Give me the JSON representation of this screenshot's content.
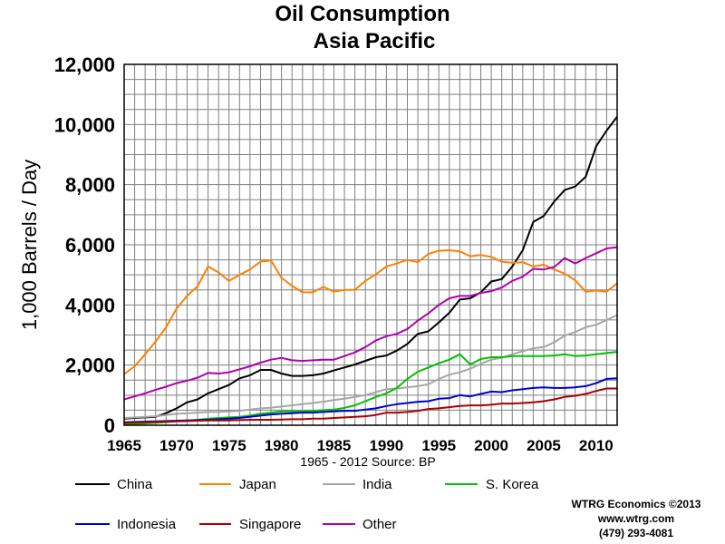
{
  "chart_data": {
    "type": "line",
    "title": "Oil Consumption",
    "subtitle": "Asia Pacific",
    "xlabel": "1965 - 2012 Source: BP",
    "ylabel": "1,000 Barrels / Day",
    "xlim": [
      1965,
      2012
    ],
    "ylim": [
      0,
      12000
    ],
    "grid": true,
    "legend_position": "bottom",
    "x_ticks": [
      "1965",
      "1970",
      "1975",
      "1980",
      "1985",
      "1990",
      "1995",
      "2000",
      "2005",
      "2010"
    ],
    "y_ticks": [
      "0",
      "2,000",
      "4,000",
      "6,000",
      "8,000",
      "10,000",
      "12,000"
    ],
    "x": [
      1965,
      1966,
      1967,
      1968,
      1969,
      1970,
      1971,
      1972,
      1973,
      1974,
      1975,
      1976,
      1977,
      1978,
      1979,
      1980,
      1981,
      1982,
      1983,
      1984,
      1985,
      1986,
      1987,
      1988,
      1989,
      1990,
      1991,
      1992,
      1993,
      1994,
      1995,
      1996,
      1997,
      1998,
      1999,
      2000,
      2001,
      2002,
      2003,
      2004,
      2005,
      2006,
      2007,
      2008,
      2009,
      2010,
      2011,
      2012
    ],
    "series": [
      {
        "name": "China",
        "color": "#000000",
        "values": [
          220,
          240,
          260,
          280,
          400,
          560,
          760,
          860,
          1060,
          1200,
          1340,
          1560,
          1660,
          1840,
          1840,
          1720,
          1640,
          1640,
          1660,
          1720,
          1820,
          1920,
          2020,
          2140,
          2260,
          2320,
          2480,
          2700,
          3040,
          3120,
          3420,
          3740,
          4180,
          4220,
          4420,
          4780,
          4860,
          5280,
          5820,
          6760,
          6960,
          7440,
          7820,
          7940,
          8260,
          9280,
          9800,
          10260
        ]
      },
      {
        "name": "Japan",
        "color": "#ff8000",
        "values": [
          1700,
          1960,
          2360,
          2780,
          3260,
          3880,
          4300,
          4620,
          5280,
          5080,
          4800,
          5000,
          5180,
          5440,
          5480,
          4900,
          4640,
          4420,
          4420,
          4600,
          4440,
          4500,
          4500,
          4800,
          5020,
          5280,
          5380,
          5500,
          5420,
          5700,
          5800,
          5820,
          5780,
          5620,
          5660,
          5600,
          5440,
          5400,
          5420,
          5280,
          5340,
          5180,
          5040,
          4820,
          4440,
          4480,
          4440,
          4720
        ]
      },
      {
        "name": "India",
        "color": "#a6a6a6",
        "values": [
          240,
          260,
          280,
          300,
          340,
          380,
          400,
          420,
          440,
          440,
          460,
          480,
          520,
          560,
          580,
          620,
          660,
          700,
          740,
          780,
          840,
          880,
          940,
          1000,
          1100,
          1200,
          1220,
          1260,
          1300,
          1360,
          1540,
          1680,
          1760,
          1880,
          2040,
          2180,
          2240,
          2360,
          2460,
          2560,
          2600,
          2760,
          2980,
          3100,
          3260,
          3340,
          3500,
          3660
        ]
      },
      {
        "name": "S. Korea",
        "color": "#00c000",
        "values": [
          30,
          40,
          60,
          80,
          100,
          140,
          160,
          180,
          220,
          240,
          260,
          280,
          320,
          380,
          420,
          460,
          460,
          460,
          480,
          500,
          520,
          580,
          660,
          800,
          940,
          1060,
          1240,
          1540,
          1780,
          1920,
          2060,
          2180,
          2360,
          2020,
          2200,
          2260,
          2260,
          2300,
          2300,
          2300,
          2300,
          2320,
          2360,
          2300,
          2320,
          2360,
          2400,
          2440
        ]
      },
      {
        "name": "Indonesia",
        "color": "#0000cc",
        "values": [
          100,
          110,
          120,
          130,
          140,
          150,
          160,
          170,
          180,
          200,
          220,
          240,
          280,
          320,
          360,
          380,
          400,
          420,
          420,
          440,
          460,
          480,
          480,
          520,
          560,
          640,
          700,
          740,
          780,
          800,
          880,
          900,
          1000,
          960,
          1040,
          1120,
          1100,
          1160,
          1200,
          1240,
          1260,
          1240,
          1240,
          1260,
          1300,
          1400,
          1540,
          1560
        ]
      },
      {
        "name": "Singapore",
        "color": "#aa0000",
        "values": [
          80,
          90,
          100,
          110,
          120,
          130,
          140,
          150,
          160,
          160,
          160,
          170,
          180,
          180,
          180,
          190,
          200,
          200,
          220,
          220,
          240,
          260,
          280,
          300,
          340,
          420,
          420,
          440,
          480,
          540,
          560,
          600,
          640,
          660,
          660,
          680,
          720,
          720,
          740,
          760,
          800,
          860,
          940,
          980,
          1040,
          1140,
          1220,
          1220
        ]
      },
      {
        "name": "Other",
        "color": "#b000b0",
        "values": [
          860,
          960,
          1060,
          1180,
          1280,
          1400,
          1480,
          1580,
          1740,
          1720,
          1760,
          1860,
          1960,
          2080,
          2180,
          2240,
          2160,
          2140,
          2160,
          2180,
          2180,
          2300,
          2420,
          2600,
          2820,
          2960,
          3040,
          3200,
          3480,
          3720,
          4000,
          4220,
          4300,
          4300,
          4400,
          4460,
          4580,
          4800,
          4940,
          5200,
          5180,
          5260,
          5560,
          5380,
          5560,
          5720,
          5880,
          5920
        ]
      }
    ]
  },
  "legend_labels": [
    "China",
    "Japan",
    "India",
    "S. Korea",
    "Indonesia",
    "Singapore",
    "Other"
  ],
  "credit": {
    "line1": "WTRG Economics  ©2013",
    "line2": "www.wtrg.com",
    "line3": "(479) 293-4081"
  }
}
